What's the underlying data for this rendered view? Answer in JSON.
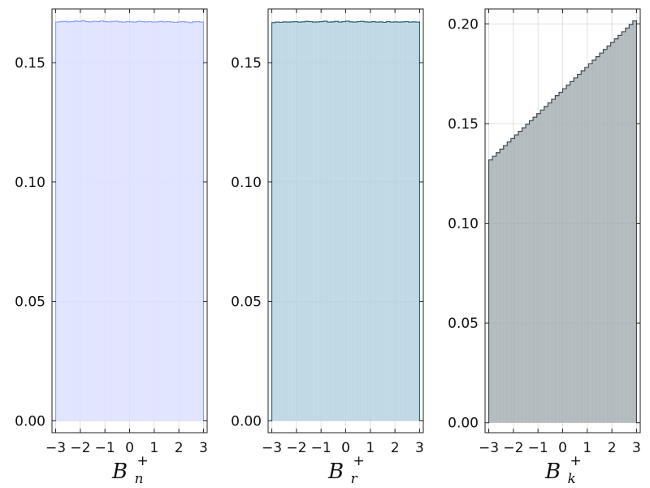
{
  "chart_data": [
    {
      "type": "histogram",
      "xlabel_base": "B",
      "xlabel_sub": "n",
      "xlabel_sup": "+",
      "xlim": [
        -3.15,
        3.15
      ],
      "ylim": [
        -0.005,
        0.1725
      ],
      "xticks": [
        -3,
        -2,
        -1,
        0,
        1,
        2,
        3
      ],
      "xtick_labels": [
        "−3",
        "−2",
        "−1",
        "0",
        "1",
        "2",
        "3"
      ],
      "yticks": [
        0,
        0.05,
        0.1,
        0.15
      ],
      "ytick_labels": [
        "0.00",
        "0.05",
        "0.10",
        "0.15"
      ],
      "grid": true,
      "color": "#8da0ff",
      "fill_color": "#dde1ff",
      "bin_edges": [
        -3.0,
        3.0
      ],
      "bin_count": 40,
      "values": [
        0.167,
        0.1672,
        0.1673,
        0.1671,
        0.1672,
        0.1674,
        0.1673,
        0.1676,
        0.1672,
        0.1671,
        0.1673,
        0.1672,
        0.1675,
        0.1672,
        0.1671,
        0.1673,
        0.1674,
        0.1671,
        0.167,
        0.1672,
        0.1671,
        0.167,
        0.1673,
        0.1672,
        0.1671,
        0.1672,
        0.167,
        0.1671,
        0.1673,
        0.1671,
        0.1672,
        0.167,
        0.1669,
        0.1671,
        0.1672,
        0.167,
        0.1668,
        0.1671,
        0.1672,
        0.167
      ]
    },
    {
      "type": "histogram",
      "xlabel_base": "B",
      "xlabel_sub": "r",
      "xlabel_sup": "+",
      "xlim": [
        -3.15,
        3.15
      ],
      "ylim": [
        -0.005,
        0.1725
      ],
      "xticks": [
        -3,
        -2,
        -1,
        0,
        1,
        2,
        3
      ],
      "xtick_labels": [
        "−3",
        "−2",
        "−1",
        "0",
        "1",
        "2",
        "3"
      ],
      "yticks": [
        0,
        0.05,
        0.1,
        0.15
      ],
      "ytick_labels": [
        "0.00",
        "0.05",
        "0.10",
        "0.15"
      ],
      "grid": true,
      "color": "#2f6180",
      "fill_color": "#b6d3e0",
      "bin_edges": [
        -3.0,
        3.0
      ],
      "bin_count": 40,
      "values": [
        0.1668,
        0.167,
        0.1669,
        0.1671,
        0.167,
        0.1671,
        0.1672,
        0.167,
        0.1671,
        0.1673,
        0.1672,
        0.167,
        0.1671,
        0.1672,
        0.1674,
        0.167,
        0.1671,
        0.1673,
        0.167,
        0.1672,
        0.1674,
        0.1671,
        0.167,
        0.1672,
        0.1673,
        0.1671,
        0.167,
        0.1672,
        0.167,
        0.1671,
        0.1669,
        0.1672,
        0.167,
        0.1671,
        0.167,
        0.1671,
        0.1672,
        0.167,
        0.1671,
        0.167
      ]
    },
    {
      "type": "histogram",
      "xlabel_base": "B",
      "xlabel_sub": "k",
      "xlabel_sup": "+",
      "xlim": [
        -3.15,
        3.15
      ],
      "ylim": [
        -0.005,
        0.2075
      ],
      "xticks": [
        -3,
        -2,
        -1,
        0,
        1,
        2,
        3
      ],
      "xtick_labels": [
        "−3",
        "−2",
        "−1",
        "0",
        "1",
        "2",
        "3"
      ],
      "yticks": [
        0,
        0.05,
        0.1,
        0.15,
        0.2
      ],
      "ytick_labels": [
        "0.00",
        "0.05",
        "0.10",
        "0.15",
        "0.20"
      ],
      "grid": true,
      "color": "#3f4b52",
      "fill_color": "#a8b1b6",
      "bin_edges": [
        -3.0,
        3.0
      ],
      "bin_count": 40,
      "values": [
        0.1318,
        0.1336,
        0.1354,
        0.1372,
        0.139,
        0.1408,
        0.1425,
        0.1443,
        0.1461,
        0.1479,
        0.1497,
        0.1515,
        0.1532,
        0.155,
        0.1568,
        0.1586,
        0.1604,
        0.1622,
        0.164,
        0.1657,
        0.1675,
        0.1693,
        0.1711,
        0.1729,
        0.1747,
        0.1765,
        0.1782,
        0.18,
        0.1818,
        0.1836,
        0.1854,
        0.1872,
        0.1889,
        0.1907,
        0.1925,
        0.1943,
        0.1961,
        0.1979,
        0.1997,
        0.2015
      ]
    }
  ]
}
